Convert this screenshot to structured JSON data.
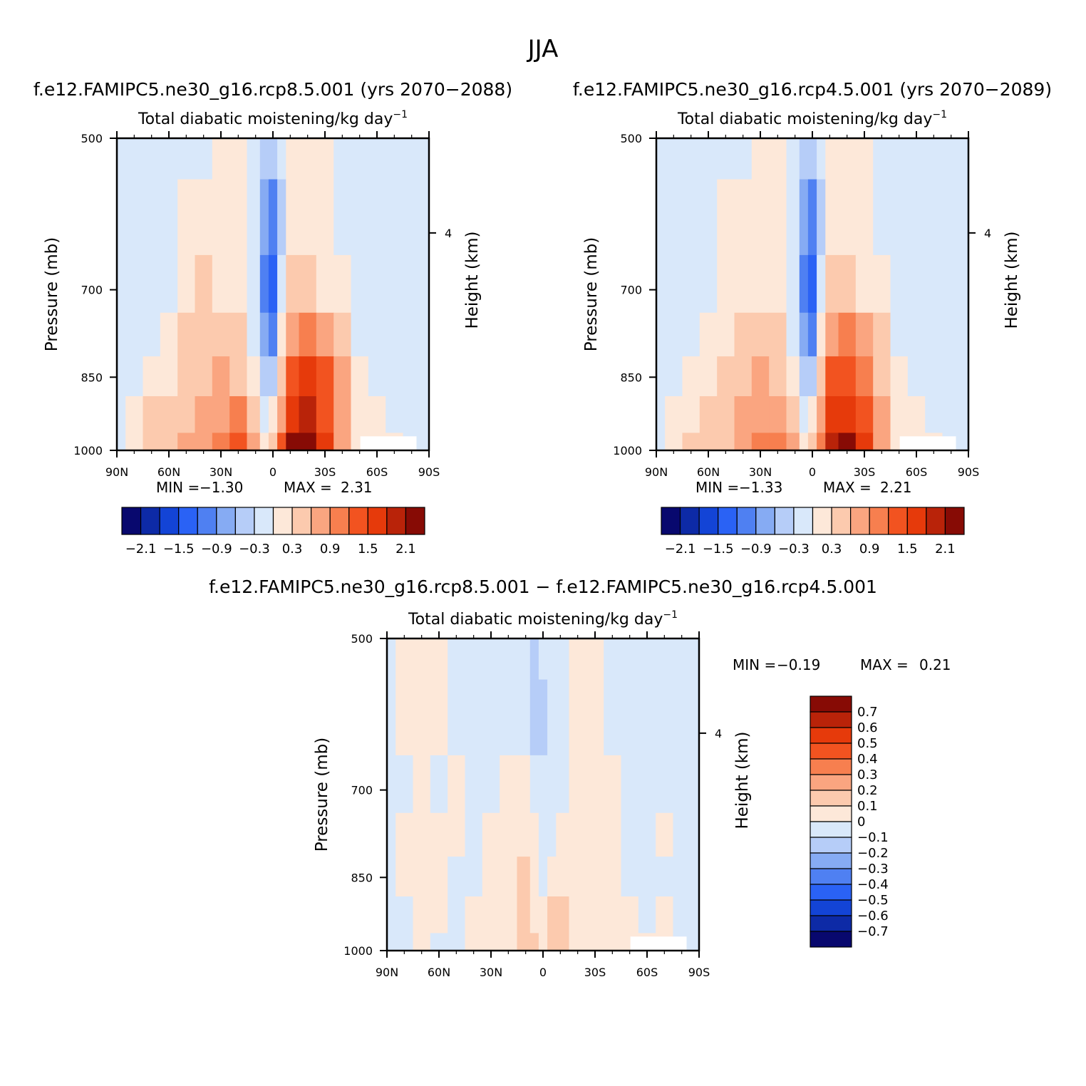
{
  "figure": {
    "title": "JJA",
    "diff_title": "f.e12.FAMIPC5.ne30_g16.rcp8.5.001 − f.e12.FAMIPC5.ne30_g16.rcp4.5.001"
  },
  "colors": {
    "levels15": [
      "#08086e",
      "#0d2aa6",
      "#1344d6",
      "#2a62f5",
      "#4f80f2",
      "#86abf3",
      "#b6cdf8",
      "#d9e8fa",
      "#fde8d9",
      "#fccaae",
      "#faa580",
      "#f77f4f",
      "#f25320",
      "#e63a0b",
      "#b92309",
      "#870b05"
    ],
    "zero_band": "#ffffff"
  },
  "chart_data": [
    {
      "type": "heatmap",
      "run_title": "f.e12.FAMIPC5.ne30_g16.rcp8.5.001 (yrs 2070−2088)",
      "subtitle": "Total diabatic moistening/kg day",
      "subtitle_sup": "−1",
      "ylabel": "Pressure (mb)",
      "ylabel_right": "Height (km)",
      "x_ticks": [
        "90N",
        "60N",
        "30N",
        "0",
        "30S",
        "60S",
        "90S"
      ],
      "y_ticks": [
        "500",
        "700",
        "850",
        "1000"
      ],
      "y_ticks_right": [
        "4"
      ],
      "min_label": "MIN =",
      "min_value": "−1.30",
      "max_label": "MAX =",
      "max_value": "2.31",
      "colorbar_labels": [
        "−2.1",
        "−1.5",
        "−0.9",
        "−0.3",
        "0.3",
        "0.9",
        "1.5",
        "2.1"
      ],
      "field": {
        "lat": [
          90,
          80,
          70,
          60,
          50,
          40,
          30,
          20,
          10,
          5,
          0,
          -5,
          -10,
          -20,
          -30,
          -40,
          -50,
          -60,
          -70,
          -80,
          -90
        ],
        "p": [
          500,
          600,
          700,
          775,
          850,
          925,
          1000
        ],
        "values": [
          [
            -0.1,
            -0.1,
            -0.3,
            -0.3,
            -0.1,
            -0.1,
            0.0,
            0.0,
            -0.1,
            -0.4,
            -0.6,
            -0.3,
            0.0,
            0.1,
            0.0,
            -0.1,
            -0.3,
            -0.3,
            -0.1,
            -0.1,
            -0.1
          ],
          [
            -0.1,
            -0.1,
            -0.3,
            -0.3,
            0.1,
            0.1,
            0.0,
            0.0,
            -0.2,
            -0.8,
            -1.0,
            -0.4,
            0.1,
            0.2,
            0.1,
            -0.1,
            -0.3,
            -0.3,
            -0.3,
            -0.1,
            -0.1
          ],
          [
            -0.1,
            -0.1,
            -0.1,
            -0.1,
            0.2,
            0.3,
            0.2,
            0.2,
            -0.3,
            -1.1,
            -1.3,
            -0.3,
            0.4,
            0.4,
            0.2,
            0.1,
            -0.2,
            -0.3,
            -0.3,
            -0.1,
            -0.1
          ],
          [
            -0.1,
            -0.1,
            -0.1,
            0.1,
            0.3,
            0.4,
            0.4,
            0.3,
            -0.2,
            -0.9,
            -1.1,
            0.0,
            0.8,
            1.0,
            0.7,
            0.3,
            -0.1,
            -0.2,
            -0.2,
            -0.1,
            -0.1
          ],
          [
            -0.1,
            -0.1,
            0.1,
            0.2,
            0.4,
            0.5,
            0.6,
            0.5,
            0.0,
            -0.6,
            -0.5,
            0.3,
            1.3,
            1.5,
            1.2,
            0.6,
            0.0,
            -0.1,
            -0.1,
            -0.1,
            -0.1
          ],
          [
            -0.1,
            0.1,
            0.3,
            0.3,
            0.5,
            0.7,
            0.8,
            0.9,
            0.4,
            -0.2,
            0.0,
            0.8,
            1.7,
            1.8,
            1.4,
            0.7,
            0.1,
            0.0,
            -0.1,
            -0.1,
            -0.1
          ],
          [
            -0.1,
            0.2,
            0.4,
            0.4,
            0.6,
            0.8,
            1.0,
            1.2,
            0.8,
            0.2,
            0.3,
            1.2,
            2.1,
            2.3,
            1.6,
            0.8,
            0.2,
            0.0,
            0.0,
            -0.1,
            -0.1
          ]
        ]
      }
    },
    {
      "type": "heatmap",
      "run_title": "f.e12.FAMIPC5.ne30_g16.rcp4.5.001 (yrs 2070−2089)",
      "subtitle": "Total diabatic moistening/kg day",
      "subtitle_sup": "−1",
      "ylabel": "Pressure (mb)",
      "ylabel_right": "Height (km)",
      "x_ticks": [
        "90N",
        "60N",
        "30N",
        "0",
        "30S",
        "60S",
        "90S"
      ],
      "y_ticks": [
        "500",
        "700",
        "850",
        "1000"
      ],
      "y_ticks_right": [
        "4"
      ],
      "min_label": "MIN =",
      "min_value": "−1.33",
      "max_label": "MAX =",
      "max_value": "2.21",
      "colorbar_labels": [
        "−2.1",
        "−1.5",
        "−0.9",
        "−0.3",
        "0.3",
        "0.9",
        "1.5",
        "2.1"
      ],
      "field": {
        "lat": [
          90,
          80,
          70,
          60,
          50,
          40,
          30,
          20,
          10,
          5,
          0,
          -5,
          -10,
          -20,
          -30,
          -40,
          -50,
          -60,
          -70,
          -80,
          -90
        ],
        "p": [
          500,
          600,
          700,
          775,
          850,
          925,
          1000
        ],
        "values": [
          [
            -0.1,
            -0.1,
            -0.3,
            -0.3,
            -0.1,
            -0.1,
            0.0,
            0.0,
            -0.1,
            -0.4,
            -0.6,
            -0.3,
            0.0,
            0.1,
            0.0,
            -0.1,
            -0.3,
            -0.3,
            -0.1,
            -0.1,
            -0.1
          ],
          [
            -0.1,
            -0.1,
            -0.3,
            -0.2,
            0.1,
            0.1,
            0.0,
            0.0,
            -0.2,
            -0.8,
            -1.0,
            -0.4,
            0.1,
            0.2,
            0.1,
            -0.1,
            -0.3,
            -0.3,
            -0.3,
            -0.1,
            -0.1
          ],
          [
            -0.1,
            -0.1,
            -0.1,
            -0.1,
            0.2,
            0.2,
            0.2,
            0.1,
            -0.3,
            -1.1,
            -1.3,
            -0.3,
            0.3,
            0.4,
            0.2,
            0.1,
            -0.2,
            -0.3,
            -0.3,
            -0.1,
            -0.1
          ],
          [
            -0.1,
            -0.1,
            -0.1,
            0.1,
            0.2,
            0.3,
            0.4,
            0.3,
            -0.2,
            -0.9,
            -1.1,
            0.0,
            0.7,
            0.9,
            0.7,
            0.3,
            -0.1,
            -0.2,
            -0.2,
            -0.1,
            -0.1
          ],
          [
            -0.1,
            -0.1,
            0.1,
            0.2,
            0.3,
            0.4,
            0.6,
            0.5,
            0.0,
            -0.6,
            -0.5,
            0.3,
            1.2,
            1.4,
            1.1,
            0.5,
            0.0,
            -0.1,
            -0.1,
            -0.1,
            -0.1
          ],
          [
            -0.1,
            0.1,
            0.2,
            0.3,
            0.4,
            0.6,
            0.8,
            0.8,
            0.4,
            -0.2,
            0.0,
            0.7,
            1.6,
            1.7,
            1.3,
            0.6,
            0.1,
            0.0,
            -0.1,
            -0.1,
            -0.1
          ],
          [
            -0.1,
            0.2,
            0.3,
            0.4,
            0.5,
            0.7,
            1.0,
            1.1,
            0.8,
            0.2,
            0.3,
            1.1,
            2.0,
            2.2,
            1.5,
            0.7,
            0.2,
            0.0,
            0.0,
            -0.1,
            -0.1
          ]
        ]
      }
    },
    {
      "type": "heatmap",
      "run_title": "",
      "subtitle": "Total diabatic moistening/kg day",
      "subtitle_sup": "−1",
      "ylabel": "Pressure (mb)",
      "ylabel_right": "Height (km)",
      "x_ticks": [
        "90N",
        "60N",
        "30N",
        "0",
        "30S",
        "60S",
        "90S"
      ],
      "y_ticks": [
        "500",
        "700",
        "850",
        "1000"
      ],
      "y_ticks_right": [
        "4"
      ],
      "min_label": "MIN =",
      "min_value": "−0.19",
      "max_label": "MAX =",
      "max_value": "0.21",
      "colorbar_labels": [
        "0.7",
        "0.6",
        "0.5",
        "0.4",
        "0.3",
        "0.2",
        "0.1",
        "0",
        "−0.1",
        "−0.2",
        "−0.3",
        "−0.4",
        "−0.5",
        "−0.6",
        "−0.7"
      ],
      "field": {
        "lat": [
          90,
          80,
          70,
          60,
          50,
          40,
          30,
          20,
          10,
          5,
          0,
          -5,
          -10,
          -20,
          -30,
          -40,
          -50,
          -60,
          -70,
          -80,
          -90
        ],
        "p": [
          500,
          600,
          700,
          775,
          850,
          925,
          1000
        ],
        "values": [
          [
            -0.05,
            0.05,
            0.05,
            0.05,
            -0.05,
            -0.05,
            -0.05,
            -0.05,
            -0.05,
            -0.1,
            -0.05,
            -0.05,
            -0.05,
            0.05,
            0.05,
            -0.05,
            -0.05,
            -0.05,
            -0.05,
            -0.05,
            -0.05
          ],
          [
            -0.05,
            0.05,
            0.05,
            0.05,
            -0.05,
            -0.05,
            -0.05,
            -0.05,
            -0.05,
            -0.15,
            -0.12,
            -0.05,
            -0.05,
            0.05,
            0.05,
            -0.05,
            -0.05,
            -0.05,
            -0.05,
            -0.05,
            -0.05
          ],
          [
            -0.05,
            -0.05,
            0.05,
            -0.05,
            0.05,
            -0.05,
            -0.05,
            0.05,
            0.05,
            -0.05,
            -0.05,
            -0.05,
            -0.05,
            0.05,
            0.05,
            0.05,
            -0.05,
            -0.05,
            -0.05,
            -0.05,
            -0.05
          ],
          [
            -0.05,
            0.05,
            0.05,
            0.05,
            0.05,
            -0.05,
            0.05,
            0.05,
            0.05,
            0.05,
            -0.05,
            -0.05,
            0.05,
            0.05,
            0.05,
            0.05,
            -0.05,
            -0.05,
            0.05,
            -0.05,
            -0.05
          ],
          [
            -0.05,
            0.05,
            0.05,
            0.05,
            -0.05,
            -0.05,
            0.05,
            0.05,
            0.12,
            0.05,
            -0.05,
            0.05,
            0.05,
            0.05,
            0.05,
            0.05,
            -0.05,
            -0.05,
            -0.05,
            -0.05,
            -0.05
          ],
          [
            -0.05,
            -0.05,
            0.05,
            0.05,
            -0.05,
            0.05,
            0.05,
            0.05,
            0.12,
            0.1,
            0.05,
            0.12,
            0.12,
            0.05,
            0.05,
            0.05,
            0.05,
            -0.05,
            0.05,
            -0.05,
            -0.05
          ],
          [
            -0.05,
            -0.05,
            0.05,
            -0.05,
            -0.05,
            0.05,
            0.05,
            0.05,
            0.12,
            0.12,
            0.05,
            0.12,
            0.12,
            0.05,
            0.05,
            0.05,
            0.05,
            0.05,
            0.05,
            -0.05,
            -0.05
          ]
        ]
      }
    }
  ]
}
